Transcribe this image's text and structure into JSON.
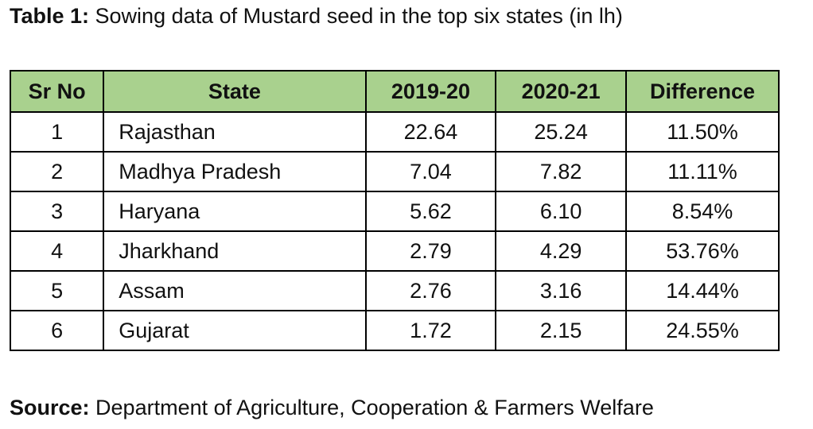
{
  "caption": {
    "lead": "Table 1:",
    "text": " Sowing data of Mustard seed in the top six states (in lh)"
  },
  "table": {
    "headers": [
      "Sr No",
      "State",
      "2019-20",
      "2020-21",
      "Difference"
    ],
    "rows": [
      [
        "1",
        "Rajasthan",
        "22.64",
        "25.24",
        "11.50%"
      ],
      [
        "2",
        "Madhya Pradesh",
        "7.04",
        "7.82",
        "11.11%"
      ],
      [
        "3",
        "Haryana",
        "5.62",
        "6.10",
        "8.54%"
      ],
      [
        "4",
        "Jharkhand",
        "2.79",
        "4.29",
        "53.76%"
      ],
      [
        "5",
        "Assam",
        "2.76",
        "3.16",
        "14.44%"
      ],
      [
        "6",
        "Gujarat",
        "1.72",
        "2.15",
        "24.55%"
      ]
    ]
  },
  "source": {
    "lead": "Source:",
    "text": " Department of Agriculture, Cooperation & Farmers Welfare"
  },
  "colors": {
    "header_background": "#a9d18e",
    "border": "#000000",
    "text": "#111111"
  }
}
